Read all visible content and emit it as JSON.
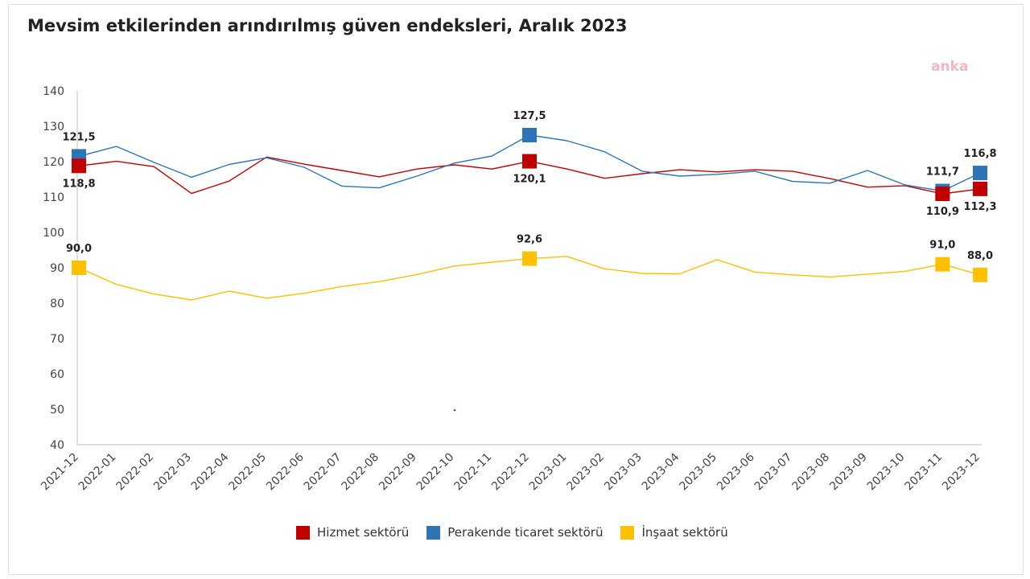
{
  "title": "Mevsim etkilerinden arındırılmış güven endeksleri, Aralık 2023",
  "watermark": "anka",
  "chart_data": {
    "type": "line",
    "title": "Mevsim etkilerinden arındırılmış güven endeksleri, Aralık 2023",
    "xlabel": "",
    "ylabel": "",
    "ylim": [
      40,
      140
    ],
    "yticks": [
      40,
      50,
      60,
      70,
      80,
      90,
      100,
      110,
      120,
      130,
      140
    ],
    "grid": false,
    "legend_position": "bottom",
    "categories": [
      "2021-12",
      "2022-01",
      "2022-02",
      "2022-03",
      "2022-04",
      "2022-05",
      "2022-06",
      "2022-07",
      "2022-08",
      "2022-09",
      "2022-10",
      "2022-11",
      "2022-12",
      "2023-01",
      "2023-02",
      "2023-03",
      "2023-04",
      "2023-05",
      "2023-06",
      "2023-07",
      "2023-08",
      "2023-09",
      "2023-10",
      "2023-11",
      "2023-12"
    ],
    "series": [
      {
        "name": "Hizmet sektörü",
        "color": "#c00000",
        "values": [
          118.8,
          120.1,
          118.6,
          111.0,
          114.5,
          121.3,
          119.3,
          117.5,
          115.7,
          117.9,
          119.1,
          117.9,
          120.1,
          117.9,
          115.3,
          116.6,
          117.7,
          117.1,
          117.7,
          117.3,
          115.2,
          112.8,
          113.2,
          110.9,
          112.3
        ],
        "labels": [
          {
            "index": 0,
            "text": "118,8"
          },
          {
            "index": 12,
            "text": "120,1"
          },
          {
            "index": 23,
            "text": "110,9"
          },
          {
            "index": 24,
            "text": "112,3"
          }
        ]
      },
      {
        "name": "Perakende ticaret sektörü",
        "color": "#2e75b6",
        "values": [
          121.5,
          124.3,
          119.8,
          115.6,
          119.2,
          121.1,
          118.4,
          113.1,
          112.6,
          115.9,
          119.6,
          121.6,
          127.5,
          125.9,
          122.8,
          117.3,
          115.9,
          116.4,
          117.3,
          114.4,
          113.9,
          117.5,
          113.4,
          111.7,
          116.8
        ],
        "labels": [
          {
            "index": 0,
            "text": "121,5"
          },
          {
            "index": 12,
            "text": "127,5"
          },
          {
            "index": 23,
            "text": "111,7"
          },
          {
            "index": 24,
            "text": "116,8"
          }
        ]
      },
      {
        "name": "İnşaat sektörü",
        "color": "#ffc000",
        "values": [
          90.0,
          85.3,
          82.6,
          80.9,
          83.4,
          81.4,
          82.8,
          84.7,
          86.1,
          88.1,
          90.5,
          91.6,
          92.6,
          93.2,
          89.7,
          88.4,
          88.3,
          92.3,
          88.8,
          88.0,
          87.4,
          88.2,
          89.0,
          91.0,
          88.0
        ],
        "labels": [
          {
            "index": 0,
            "text": "90,0"
          },
          {
            "index": 12,
            "text": "92,6"
          },
          {
            "index": 23,
            "text": "91,0"
          },
          {
            "index": 24,
            "text": "88,0"
          }
        ]
      }
    ]
  }
}
